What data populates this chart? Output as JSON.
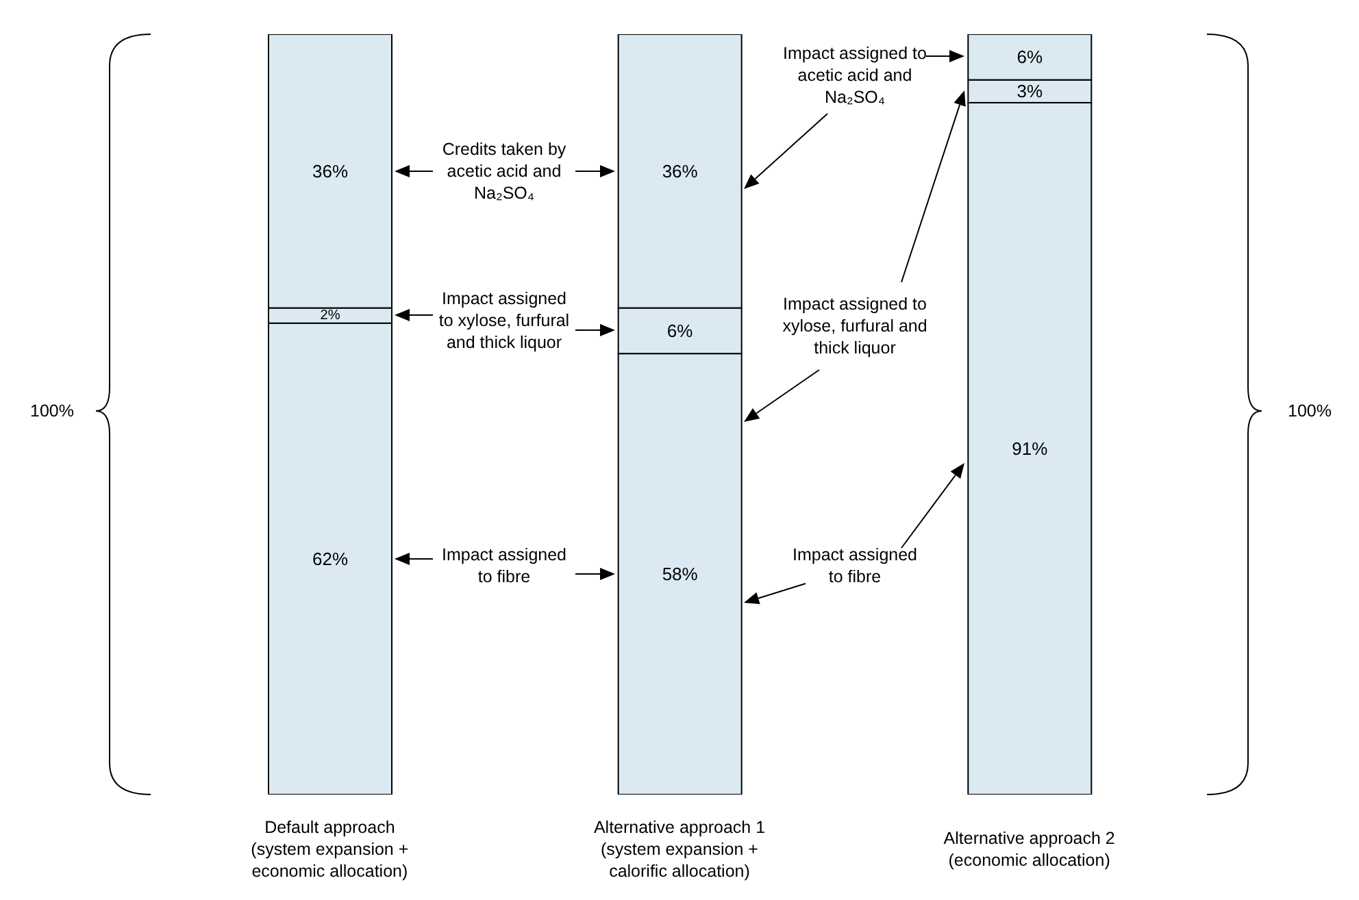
{
  "chart_data": {
    "type": "bar",
    "stacked": true,
    "categories": [
      "Default approach\n(system expansion +\neconomic allocation)",
      "Alternative approach 1\n(system expansion +\ncalorific allocation)",
      "Alternative approach 2\n(economic allocation)"
    ],
    "series": [
      {
        "color": "#dbeaf2",
        "values": [
          62,
          58,
          91
        ],
        "value_labels": [
          "62%",
          "58%",
          "91%"
        ]
      },
      {
        "color": "#dbeaf2",
        "values": [
          2,
          6,
          3
        ],
        "value_labels": [
          "2%",
          "6%",
          "3%"
        ]
      },
      {
        "color": "#dbeaf2",
        "values": [
          36,
          36,
          6
        ],
        "value_labels": [
          "36%",
          "36%",
          "6%"
        ]
      }
    ],
    "annotations": [
      "Credits taken by acetic acid and Na₂SO₄",
      "Impact assigned to xylose, furfural and thick liquor",
      "Impact assigned to fibre",
      "Impact assigned to acetic acid and Na₂SO₄",
      "Impact assigned to xylose, furfural and thick liquor",
      "Impact assigned to fibre",
      "100%",
      "100%"
    ]
  }
}
